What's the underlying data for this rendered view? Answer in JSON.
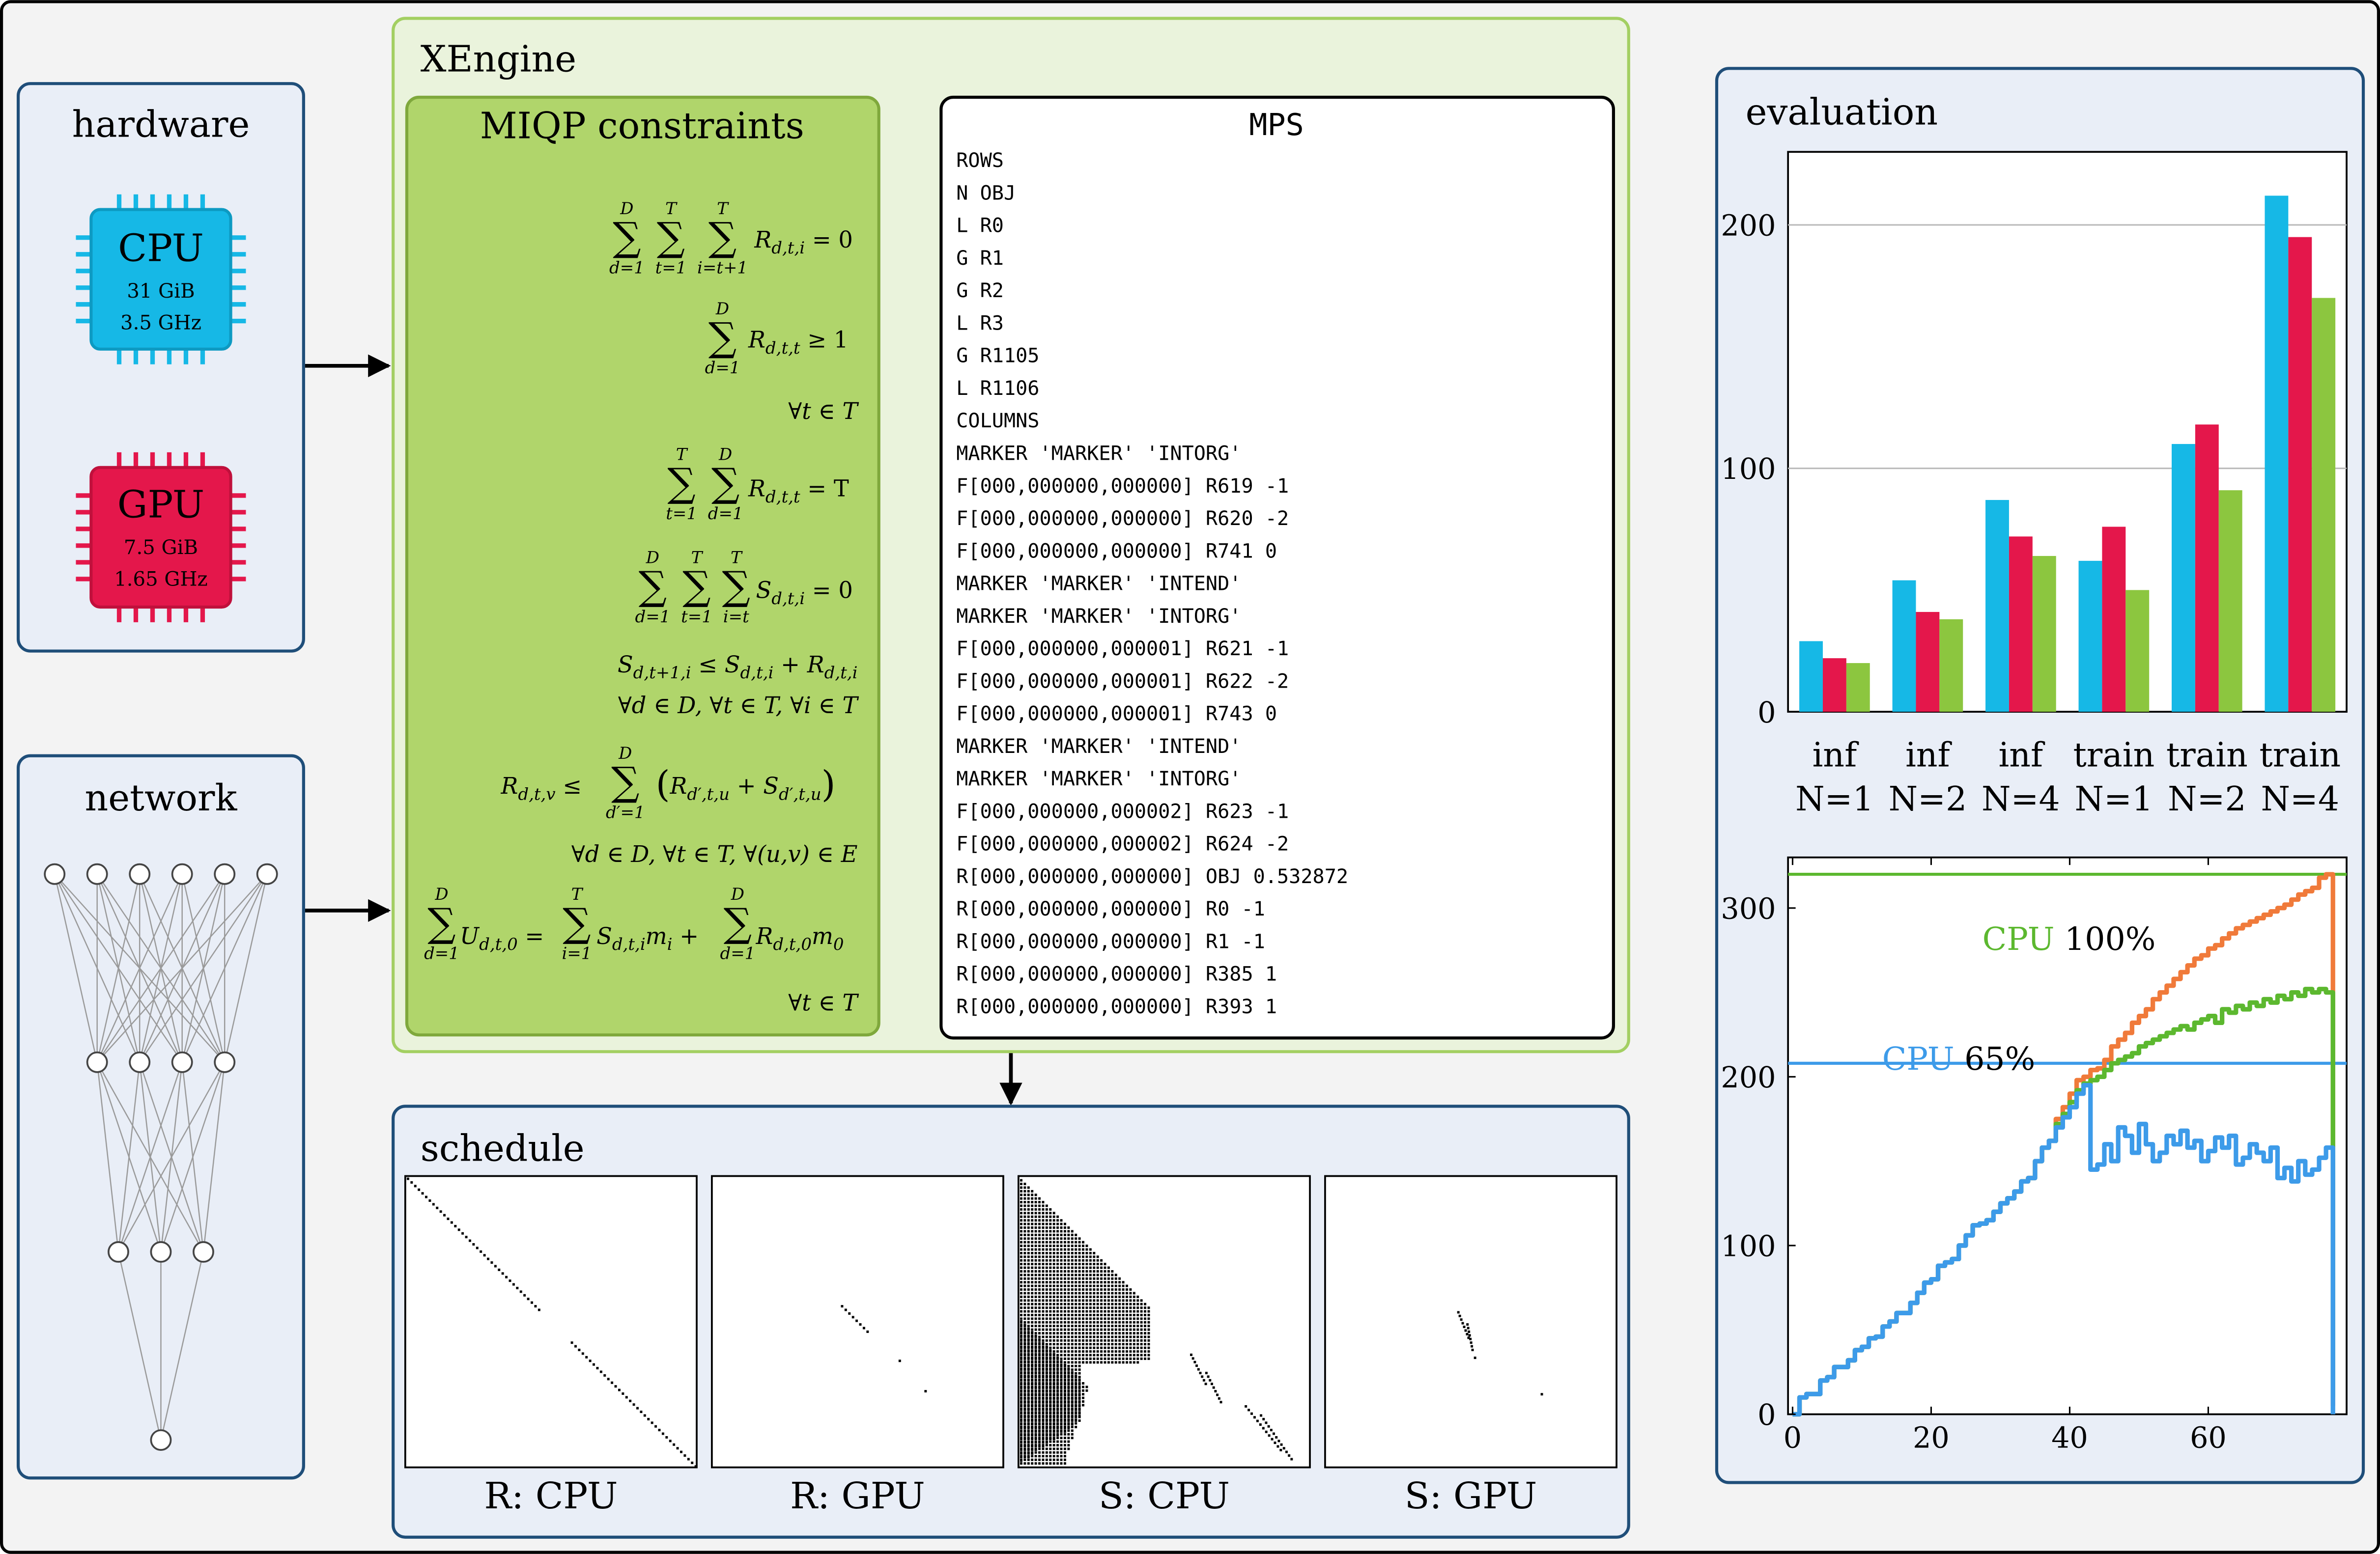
{
  "hardware": {
    "title": "hardware",
    "cpu": {
      "label": "CPU",
      "memory": "31 GiB",
      "clock": "3.5 GHz",
      "color": "#16b8e6"
    },
    "gpu": {
      "label": "GPU",
      "memory": "7.5 GiB",
      "clock": "1.65 GHz",
      "color": "#e4174b"
    }
  },
  "network": {
    "title": "network",
    "layers": [
      6,
      4,
      3,
      1
    ]
  },
  "xengine": {
    "title": "XEngine",
    "miqp": {
      "title": "MIQP constraints",
      "line1": "Σ Σ Σ R_{d,t,i} = 0",
      "sup1": [
        "D",
        "T",
        "T"
      ],
      "sub1": [
        "d=1",
        "t=1",
        "i=t+1"
      ],
      "line2": "Σ R_{d,t,t} ≥ 1",
      "sup2": "D",
      "sub2": "d=1",
      "forall1": "∀t ∈ T",
      "line3": "Σ Σ R_{d,t,t} = T",
      "sup3": [
        "T",
        "D"
      ],
      "sub3": [
        "t=1",
        "d=1"
      ],
      "line4": "Σ Σ Σ S_{d,t,i} = 0",
      "sup4": [
        "D",
        "T",
        "T"
      ],
      "sub4": [
        "d=1",
        "t=1",
        "i=t"
      ],
      "line5": "S_{d,t+1,i} ≤ S_{d,t,i} + R_{d,t,i}",
      "forall2": "∀d ∈ D,  ∀t ∈ T,  ∀i ∈ T",
      "line6": "R_{d,t,v} ≤ Σ (R_{d′,t,u} + S_{d′,t,u})",
      "sup6": "D",
      "sub6": "d′=1",
      "forall3": "∀d ∈ D,  ∀t ∈ T,  ∀(u,v) ∈ E",
      "line7": "Σ U_{d,t,0} = Σ S_{d,t,i} m_i + Σ R_{d,t,0} m_0",
      "sup7": [
        "D",
        "T",
        "D"
      ],
      "sub7": [
        "d=1",
        "i=1",
        "d=1"
      ],
      "forall4": "∀t ∈ T"
    },
    "mps": {
      "title": "MPS",
      "lines": [
        "ROWS",
        " N  OBJ",
        " L  R0",
        " G  R1",
        " G  R2",
        " L  R3",
        " G  R1105",
        " L  R1106",
        "COLUMNS",
        "    MARKER                  'MARKER'    'INTORG'",
        "    F[000,000000,000000]  R619        -1",
        "    F[000,000000,000000]  R620        -2",
        "    F[000,000000,000000]  R741        0",
        "    MARKER                  'MARKER'    'INTEND'",
        "    MARKER                  'MARKER'    'INTORG'",
        "    F[000,000000,000001]  R621        -1",
        "    F[000,000000,000001]  R622        -2",
        "    F[000,000000,000001]  R743        0",
        "    MARKER                  'MARKER'    'INTEND'",
        "    MARKER                  'MARKER'    'INTORG'",
        "    F[000,000000,000002]  R623        -1",
        "    F[000,000000,000002]  R624        -2",
        "    R[000,000000,000000]  OBJ         0.532872",
        "    R[000,000000,000000]  R0          -1",
        "    R[000,000000,000000]  R1          -1",
        "    R[000,000000,000000]  R385        1",
        "    R[000,000000,000000]  R393        1"
      ]
    }
  },
  "schedule": {
    "title": "schedule",
    "panels": [
      "R: CPU",
      "R: GPU",
      "S: CPU",
      "S: GPU"
    ]
  },
  "evaluation": {
    "title": "evaluation",
    "colors": {
      "blue": "#16b8e6",
      "red": "#e4174b",
      "green": "#8cc63f",
      "orange": "#f07a3a",
      "line_blue": "#3d9be9",
      "line_green": "#5cb82f"
    }
  },
  "chart_data": [
    {
      "type": "bar",
      "categories": [
        "inf N=1",
        "inf N=2",
        "inf N=4",
        "train N=1",
        "train N=2",
        "train N=4"
      ],
      "category_lines": [
        [
          "inf",
          "N=1"
        ],
        [
          "inf",
          "N=2"
        ],
        [
          "inf",
          "N=4"
        ],
        [
          "train",
          "N=1"
        ],
        [
          "train",
          "N=2"
        ],
        [
          "train",
          "N=4"
        ]
      ],
      "series": [
        {
          "values": [
            29,
            54,
            87,
            62,
            110,
            212
          ],
          "color": "#16b8e6"
        },
        {
          "values": [
            22,
            41,
            72,
            76,
            118,
            195
          ],
          "color": "#e4174b"
        },
        {
          "values": [
            20,
            38,
            64,
            50,
            91,
            170
          ],
          "color": "#8cc63f"
        }
      ],
      "ylim": [
        0,
        230
      ],
      "yticks": [
        0,
        100,
        200
      ],
      "grid": true
    },
    {
      "type": "line",
      "xlim": [
        0,
        78
      ],
      "ylim": [
        0,
        330
      ],
      "xticks": [
        0,
        20,
        40,
        60
      ],
      "yticks": [
        0,
        100,
        200,
        300
      ],
      "reference_lines": [
        {
          "y": 320,
          "label_name": "CPU",
          "label_value": "100%",
          "color": "#5cb82f"
        },
        {
          "y": 208,
          "label_name": "CPU",
          "label_value": "65%",
          "color": "#3d9be9"
        }
      ],
      "series": [
        {
          "color": "#f07a3a",
          "x": [
            0,
            1,
            2,
            3,
            4,
            5,
            6,
            7,
            8,
            9,
            10,
            11,
            12,
            13,
            14,
            15,
            16,
            17,
            18,
            19,
            20,
            21,
            22,
            23,
            24,
            25,
            26,
            27,
            28,
            29,
            30,
            31,
            32,
            33,
            34,
            35,
            36,
            37,
            38,
            39,
            40,
            41,
            42,
            43,
            44,
            45,
            46,
            47,
            48,
            49,
            50,
            51,
            52,
            53,
            54,
            55,
            56,
            57,
            58,
            59,
            60,
            61,
            62,
            63,
            64,
            65,
            66,
            67,
            68,
            69,
            70,
            71,
            72,
            73,
            74,
            75,
            76,
            77,
            78
          ],
          "y": [
            0,
            10,
            12,
            12,
            20,
            22,
            28,
            28,
            32,
            38,
            40,
            45,
            46,
            52,
            55,
            60,
            60,
            66,
            72,
            78,
            80,
            88,
            90,
            92,
            100,
            106,
            112,
            113,
            115,
            120,
            125,
            128,
            132,
            138,
            140,
            150,
            158,
            162,
            175,
            182,
            190,
            198,
            200,
            204,
            205,
            210,
            218,
            222,
            226,
            232,
            236,
            240,
            246,
            250,
            254,
            258,
            262,
            266,
            270,
            272,
            276,
            278,
            282,
            285,
            288,
            290,
            292,
            294,
            296,
            298,
            300,
            302,
            305,
            308,
            310,
            312,
            318,
            320,
            5
          ]
        },
        {
          "color": "#5cb82f",
          "x": [
            0,
            1,
            2,
            3,
            4,
            5,
            6,
            7,
            8,
            9,
            10,
            11,
            12,
            13,
            14,
            15,
            16,
            17,
            18,
            19,
            20,
            21,
            22,
            23,
            24,
            25,
            26,
            27,
            28,
            29,
            30,
            31,
            32,
            33,
            34,
            35,
            36,
            37,
            38,
            39,
            40,
            41,
            42,
            43,
            44,
            45,
            46,
            47,
            48,
            49,
            50,
            51,
            52,
            53,
            54,
            55,
            56,
            57,
            58,
            59,
            60,
            61,
            62,
            63,
            64,
            65,
            66,
            67,
            68,
            69,
            70,
            71,
            72,
            73,
            74,
            75,
            76,
            77,
            78
          ],
          "y": [
            0,
            10,
            12,
            12,
            20,
            22,
            28,
            28,
            32,
            38,
            40,
            45,
            46,
            52,
            55,
            60,
            60,
            66,
            72,
            78,
            80,
            88,
            90,
            92,
            100,
            106,
            112,
            113,
            115,
            120,
            125,
            128,
            132,
            138,
            140,
            150,
            158,
            162,
            172,
            178,
            185,
            192,
            196,
            198,
            200,
            204,
            208,
            210,
            212,
            214,
            218,
            220,
            222,
            224,
            226,
            228,
            230,
            228,
            232,
            234,
            236,
            232,
            240,
            238,
            242,
            240,
            244,
            242,
            246,
            244,
            248,
            246,
            250,
            248,
            252,
            250,
            252,
            250,
            10
          ]
        },
        {
          "color": "#3d9be9",
          "x": [
            0,
            1,
            2,
            3,
            4,
            5,
            6,
            7,
            8,
            9,
            10,
            11,
            12,
            13,
            14,
            15,
            16,
            17,
            18,
            19,
            20,
            21,
            22,
            23,
            24,
            25,
            26,
            27,
            28,
            29,
            30,
            31,
            32,
            33,
            34,
            35,
            36,
            37,
            38,
            39,
            40,
            41,
            42,
            43,
            44,
            45,
            46,
            47,
            48,
            49,
            50,
            51,
            52,
            53,
            54,
            55,
            56,
            57,
            58,
            59,
            60,
            61,
            62,
            63,
            64,
            65,
            66,
            67,
            68,
            69,
            70,
            71,
            72,
            73,
            74,
            75,
            76,
            77,
            78
          ],
          "y": [
            0,
            10,
            12,
            12,
            20,
            22,
            28,
            28,
            32,
            38,
            40,
            45,
            46,
            52,
            55,
            60,
            60,
            66,
            72,
            78,
            80,
            88,
            90,
            92,
            100,
            106,
            112,
            113,
            115,
            120,
            125,
            128,
            132,
            138,
            140,
            150,
            158,
            162,
            170,
            176,
            182,
            190,
            195,
            145,
            148,
            160,
            150,
            170,
            165,
            155,
            172,
            160,
            150,
            155,
            165,
            160,
            168,
            158,
            162,
            150,
            156,
            164,
            158,
            165,
            148,
            152,
            160,
            155,
            150,
            158,
            140,
            146,
            138,
            150,
            142,
            145,
            152,
            158,
            0
          ]
        }
      ]
    }
  ]
}
